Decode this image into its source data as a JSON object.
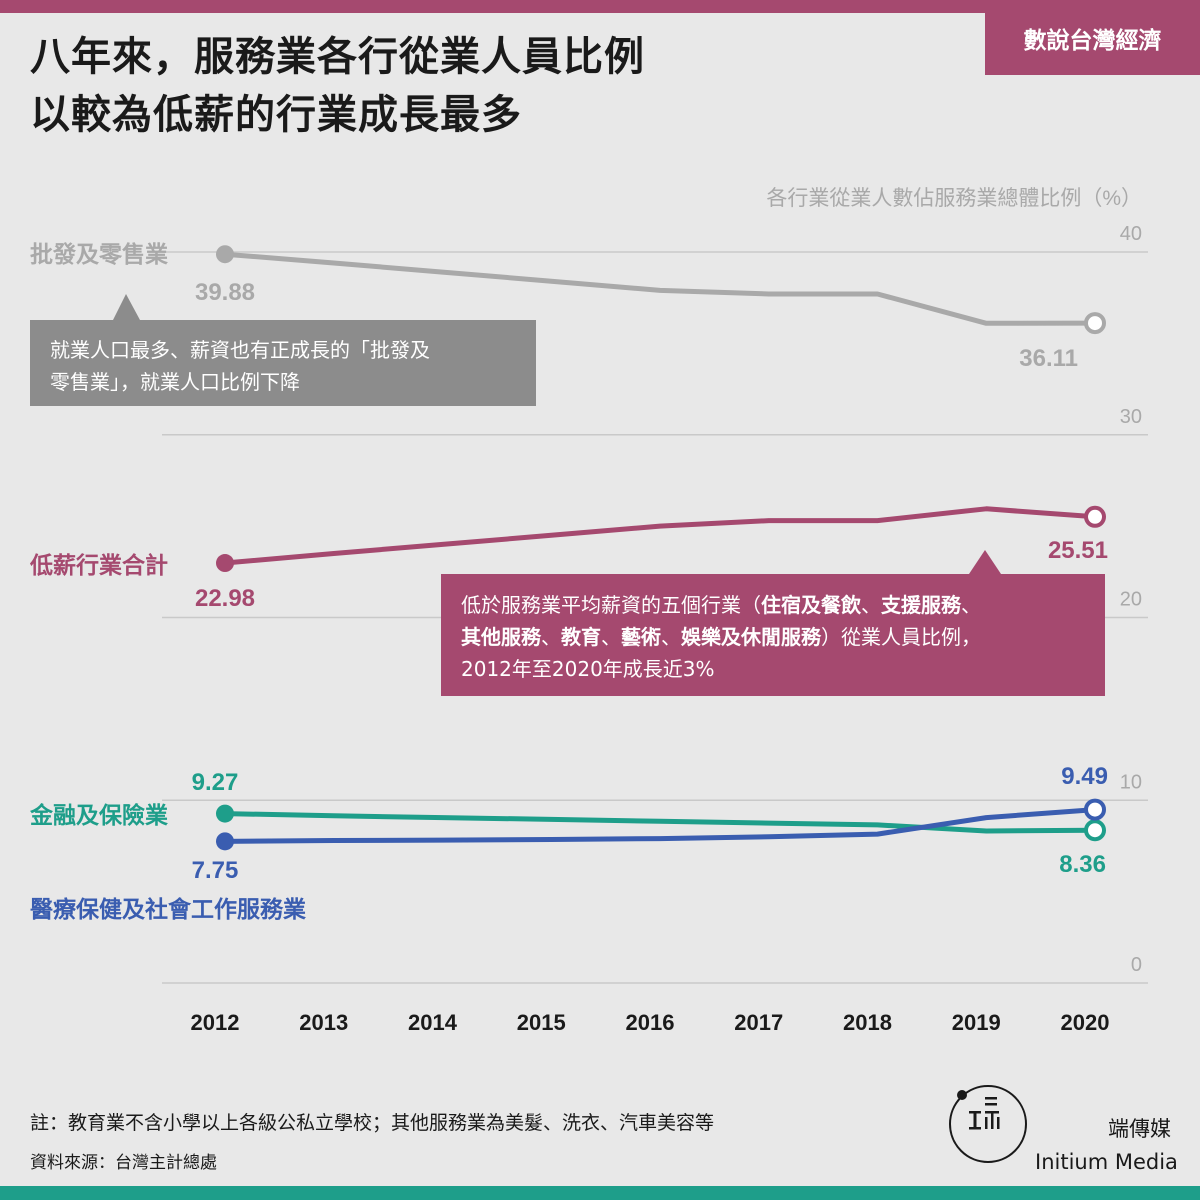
{
  "brand": "數說台灣經濟",
  "title": {
    "line1": "八年來，服務業各行從業人員比例",
    "line2": "以較為低薪的行業成長最多"
  },
  "callouts": {
    "wholesale": {
      "line1": "就業人口最多、薪資也有正成長的「批發及",
      "line2": "零售業」，就業人口比例下降"
    },
    "lowwage": {
      "l1_a": "低於服務業平均薪資的五個行業（",
      "l1_b": "住宿及餐飲",
      "l1_c": "、",
      "l1_d": "支援服務",
      "l1_e": "、",
      "l2_a": "其他服務",
      "l2_b": "、",
      "l2_c": "教育",
      "l2_d": "、",
      "l2_e": "藝術",
      "l2_f": "、",
      "l2_g": "娛樂及休閒服務",
      "l2_h": "）從業人員比例，",
      "l3": "2012年至2020年成長近3%"
    }
  },
  "colors": {
    "gray": "#a9a9a9",
    "pink": "#a5496f",
    "teal": "#1e9e8a",
    "blue": "#3a5db0",
    "grid": "#c9c9c9",
    "tick": "#a9a9a9"
  },
  "chart_data": {
    "type": "line",
    "ylabel": "各行業從業人數佔服務業總體比例（%）",
    "ylim": [
      0,
      40
    ],
    "yticks": [
      0,
      10,
      20,
      30,
      40
    ],
    "x": [
      "2012",
      "2013",
      "2014",
      "2015",
      "2016",
      "2017",
      "2018",
      "2019",
      "2020"
    ],
    "grid": true,
    "series": [
      {
        "name": "批發及零售業",
        "color": "#a9a9a9",
        "values": [
          39.88,
          39.4,
          38.9,
          38.4,
          37.9,
          37.7,
          37.7,
          36.1,
          36.11
        ],
        "start_label": "39.88",
        "end_label": "36.11"
      },
      {
        "name": "低薪行業合計",
        "color": "#a5496f",
        "values": [
          22.98,
          23.5,
          24.0,
          24.5,
          25.0,
          25.3,
          25.3,
          25.95,
          25.51
        ],
        "start_label": "22.98",
        "end_label": "25.51"
      },
      {
        "name": "金融及保險業",
        "color": "#1e9e8a",
        "values": [
          9.27,
          9.15,
          9.05,
          8.95,
          8.85,
          8.75,
          8.65,
          8.32,
          8.36
        ],
        "start_label": "9.27",
        "end_label": "8.36"
      },
      {
        "name": "醫療保健及社會工作服務業",
        "color": "#3a5db0",
        "values": [
          7.75,
          7.8,
          7.82,
          7.85,
          7.9,
          8.0,
          8.15,
          9.05,
          9.49
        ],
        "start_label": "7.75",
        "end_label": "9.49"
      }
    ]
  },
  "footer": {
    "note": "註：教育業不含小學以上各級公私立學校；其他服務業為美髮、洗衣、汽車美容等",
    "source": "資料來源：台灣主計總處",
    "publisher_cn": "端傳媒",
    "publisher_en": "Initium Media"
  }
}
